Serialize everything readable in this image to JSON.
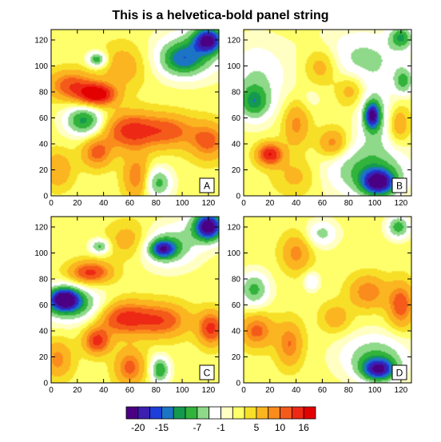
{
  "figure_title": "This is a helvetica-bold panel string",
  "chart_data": {
    "type": "heatmap",
    "title": "This is a helvetica-bold panel string",
    "xlim": [
      0,
      128
    ],
    "ylim": [
      0,
      128
    ],
    "x_ticks": [
      0,
      20,
      40,
      60,
      80,
      100,
      120
    ],
    "y_ticks": [
      0,
      20,
      40,
      60,
      80,
      100,
      120
    ],
    "levels": [
      -20,
      -17,
      -15,
      -12,
      -10,
      -7,
      -4,
      -1,
      1,
      3,
      5,
      8,
      10,
      13,
      16
    ],
    "colorbar_labels": [
      "-20",
      "-15",
      "-7",
      "-1",
      "5",
      "10",
      "16"
    ],
    "colorbar_label_levels": [
      -20,
      -15,
      -7,
      -1,
      5,
      10,
      16
    ],
    "colors": [
      "#4b0083",
      "#3a1fb0",
      "#1d3ed8",
      "#1c74c4",
      "#149a4f",
      "#31b33c",
      "#8fd98a",
      "#ffffff",
      "#ffffc4",
      "#ffff6b",
      "#f7df28",
      "#fbb521",
      "#f98c1c",
      "#f45a1a",
      "#ed2815",
      "#e30000"
    ],
    "panels": [
      {
        "label": "A",
        "features": [
          {
            "x": 120,
            "y": 120,
            "v": -20,
            "sx": 8,
            "sy": 7
          },
          {
            "x": 100,
            "y": 105,
            "v": -12,
            "sx": 12,
            "sy": 9
          },
          {
            "x": 110,
            "y": 112,
            "v": -6,
            "sx": 20,
            "sy": 14
          },
          {
            "x": 25,
            "y": 58,
            "v": -13,
            "sx": 10,
            "sy": 8
          },
          {
            "x": 35,
            "y": 105,
            "v": -12,
            "sx": 5,
            "sy": 4
          },
          {
            "x": 82,
            "y": 10,
            "v": -10,
            "sx": 7,
            "sy": 8
          },
          {
            "x": 35,
            "y": 78,
            "v": 17,
            "sx": 10,
            "sy": 6
          },
          {
            "x": 15,
            "y": 85,
            "v": 10,
            "sx": 12,
            "sy": 8
          },
          {
            "x": 60,
            "y": 50,
            "v": 12,
            "sx": 14,
            "sy": 10
          },
          {
            "x": 90,
            "y": 50,
            "v": 9,
            "sx": 14,
            "sy": 9
          },
          {
            "x": 120,
            "y": 42,
            "v": 9,
            "sx": 10,
            "sy": 10
          },
          {
            "x": 35,
            "y": 33,
            "v": 9,
            "sx": 8,
            "sy": 8
          },
          {
            "x": 65,
            "y": 15,
            "v": 8,
            "sx": 7,
            "sy": 12
          },
          {
            "x": 5,
            "y": 20,
            "v": 6,
            "sx": 8,
            "sy": 10
          },
          {
            "x": 55,
            "y": 100,
            "v": 5,
            "sx": 12,
            "sy": 12
          }
        ]
      },
      {
        "label": "B",
        "features": [
          {
            "x": 103,
            "y": 10,
            "v": -20,
            "sx": 9,
            "sy": 7
          },
          {
            "x": 98,
            "y": 62,
            "v": -17,
            "sx": 4,
            "sy": 7
          },
          {
            "x": 120,
            "y": 122,
            "v": -11,
            "sx": 6,
            "sy": 6
          },
          {
            "x": 8,
            "y": 72,
            "v": -10,
            "sx": 8,
            "sy": 9
          },
          {
            "x": 95,
            "y": 20,
            "v": -10,
            "sx": 22,
            "sy": 14
          },
          {
            "x": 100,
            "y": 60,
            "v": -8,
            "sx": 9,
            "sy": 16
          },
          {
            "x": 90,
            "y": 105,
            "v": -7,
            "sx": 26,
            "sy": 16
          },
          {
            "x": 10,
            "y": 90,
            "v": -6,
            "sx": 16,
            "sy": 20
          },
          {
            "x": 122,
            "y": 88,
            "v": -9,
            "sx": 5,
            "sy": 7
          },
          {
            "x": 52,
            "y": 75,
            "v": -2,
            "sx": 5,
            "sy": 6
          },
          {
            "x": 20,
            "y": 32,
            "v": 14,
            "sx": 7,
            "sy": 6
          },
          {
            "x": 40,
            "y": 55,
            "v": 7,
            "sx": 7,
            "sy": 12
          },
          {
            "x": 68,
            "y": 40,
            "v": 8,
            "sx": 8,
            "sy": 8
          },
          {
            "x": 60,
            "y": 100,
            "v": 7,
            "sx": 10,
            "sy": 11
          },
          {
            "x": 82,
            "y": 82,
            "v": 6,
            "sx": 8,
            "sy": 9
          },
          {
            "x": 118,
            "y": 55,
            "v": 6,
            "sx": 6,
            "sy": 10
          },
          {
            "x": 40,
            "y": 15,
            "v": 4,
            "sx": 12,
            "sy": 10
          }
        ]
      },
      {
        "label": "C",
        "features": [
          {
            "x": 10,
            "y": 65,
            "v": -20,
            "sx": 8,
            "sy": 6
          },
          {
            "x": 15,
            "y": 60,
            "v": -12,
            "sx": 17,
            "sy": 9
          },
          {
            "x": 85,
            "y": 103,
            "v": -15,
            "sx": 7,
            "sy": 5
          },
          {
            "x": 90,
            "y": 105,
            "v": -9,
            "sx": 15,
            "sy": 11
          },
          {
            "x": 120,
            "y": 120,
            "v": -18,
            "sx": 7,
            "sy": 7
          },
          {
            "x": 120,
            "y": 122,
            "v": -8,
            "sx": 12,
            "sy": 10
          },
          {
            "x": 37,
            "y": 105,
            "v": -10,
            "sx": 5,
            "sy": 4
          },
          {
            "x": 83,
            "y": 10,
            "v": -12,
            "sx": 5,
            "sy": 7
          },
          {
            "x": 30,
            "y": 85,
            "v": 12,
            "sx": 11,
            "sy": 6
          },
          {
            "x": 55,
            "y": 50,
            "v": 12,
            "sx": 14,
            "sy": 9
          },
          {
            "x": 85,
            "y": 48,
            "v": 10,
            "sx": 14,
            "sy": 9
          },
          {
            "x": 122,
            "y": 42,
            "v": 12,
            "sx": 7,
            "sy": 9
          },
          {
            "x": 35,
            "y": 32,
            "v": 12,
            "sx": 7,
            "sy": 7
          },
          {
            "x": 60,
            "y": 12,
            "v": 9,
            "sx": 8,
            "sy": 10
          },
          {
            "x": 5,
            "y": 18,
            "v": 7,
            "sx": 8,
            "sy": 10
          },
          {
            "x": 60,
            "y": 110,
            "v": 5,
            "sx": 12,
            "sy": 10
          }
        ]
      },
      {
        "label": "D",
        "features": [
          {
            "x": 103,
            "y": 10,
            "v": -18,
            "sx": 9,
            "sy": 6
          },
          {
            "x": 100,
            "y": 20,
            "v": -9,
            "sx": 18,
            "sy": 12
          },
          {
            "x": 118,
            "y": 120,
            "v": -11,
            "sx": 6,
            "sy": 6
          },
          {
            "x": 8,
            "y": 72,
            "v": -10,
            "sx": 8,
            "sy": 9
          },
          {
            "x": 60,
            "y": 115,
            "v": -7,
            "sx": 8,
            "sy": 7
          },
          {
            "x": 52,
            "y": 78,
            "v": -6,
            "sx": 4,
            "sy": 5
          },
          {
            "x": 10,
            "y": 40,
            "v": 9,
            "sx": 9,
            "sy": 9
          },
          {
            "x": 35,
            "y": 30,
            "v": 8,
            "sx": 7,
            "sy": 12
          },
          {
            "x": 95,
            "y": 70,
            "v": 8,
            "sx": 10,
            "sy": 9
          },
          {
            "x": 120,
            "y": 60,
            "v": 10,
            "sx": 7,
            "sy": 12
          },
          {
            "x": 40,
            "y": 100,
            "v": 7,
            "sx": 8,
            "sy": 10
          },
          {
            "x": 70,
            "y": 50,
            "v": 5,
            "sx": 8,
            "sy": 8
          }
        ]
      }
    ]
  }
}
